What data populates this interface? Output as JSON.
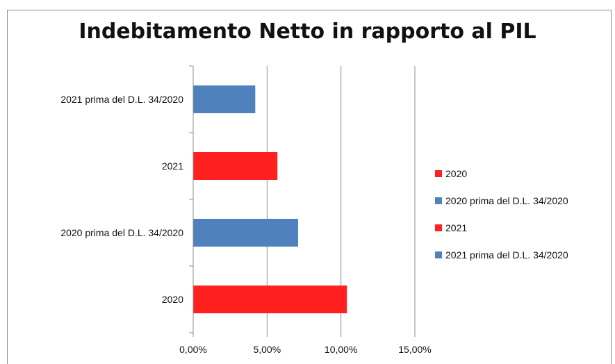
{
  "chart_data": {
    "type": "bar",
    "orientation": "horizontal",
    "title": "Indebitamento Netto in rapporto al PIL",
    "categories": [
      "2020",
      "2020 prima del D.L. 34/2020",
      "2021",
      "2021 prima del D.L. 34/2020"
    ],
    "values": [
      10.4,
      7.1,
      5.7,
      4.2
    ],
    "colors": [
      "#ff2020",
      "#4f81bd",
      "#ff2020",
      "#4f81bd"
    ],
    "xlim": [
      0,
      15
    ],
    "xticks": [
      "0,00%",
      "5,00%",
      "10,00%",
      "15,00%"
    ],
    "xtick_values": [
      0,
      5,
      10,
      15
    ],
    "grid": "vertical",
    "legend": {
      "placement": "right",
      "items": [
        {
          "label": "2020",
          "color": "#ff2020"
        },
        {
          "label": "2020 prima del D.L. 34/2020",
          "color": "#4f81bd"
        },
        {
          "label": "2021",
          "color": "#ff2020"
        },
        {
          "label": "2021 prima del D.L. 34/2020",
          "color": "#4f81bd"
        }
      ]
    }
  }
}
